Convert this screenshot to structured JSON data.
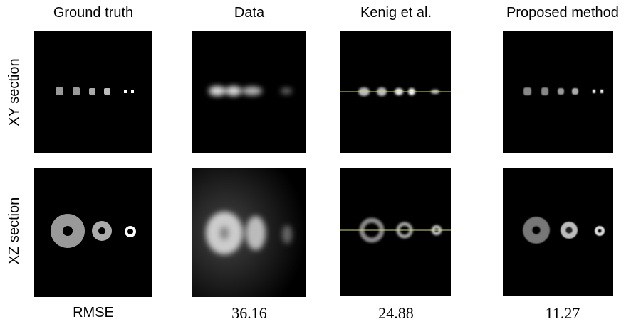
{
  "columns": [
    "Ground truth",
    "Data",
    "Kenig et al.",
    "Proposed method"
  ],
  "rows": [
    "XY section",
    "XZ section"
  ],
  "rmse": {
    "label": "RMSE",
    "values": [
      36.16,
      24.88,
      11.27
    ]
  }
}
